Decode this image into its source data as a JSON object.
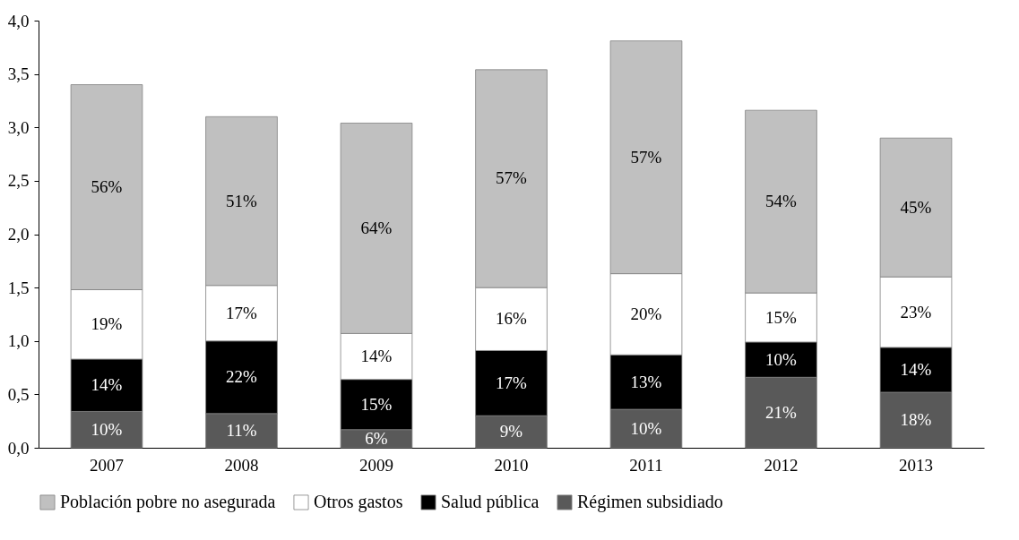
{
  "chart_data": {
    "type": "bar",
    "stacked": true,
    "categories": [
      "2007",
      "2008",
      "2009",
      "2010",
      "2011",
      "2012",
      "2013"
    ],
    "series": [
      {
        "name": "Régimen subsidiado",
        "color": "#595959",
        "values": [
          0.34,
          0.32,
          0.17,
          0.3,
          0.36,
          0.66,
          0.52
        ]
      },
      {
        "name": "Salud pública",
        "color": "#000000",
        "values": [
          0.49,
          0.68,
          0.47,
          0.61,
          0.51,
          0.33,
          0.42
        ]
      },
      {
        "name": "Otros gastos",
        "color": "#ffffff",
        "values": [
          0.65,
          0.52,
          0.43,
          0.59,
          0.76,
          0.46,
          0.66
        ]
      },
      {
        "name": "Población pobre no asegurada",
        "color": "#c0c0c0",
        "values": [
          1.92,
          1.58,
          1.97,
          2.04,
          2.18,
          1.71,
          1.3
        ]
      }
    ],
    "annotations": [
      "10%",
      "14%",
      "19%",
      "56%",
      "11%",
      "22%",
      "17%",
      "51%",
      "6%",
      "15%",
      "14%",
      "64%",
      "9%",
      "17%",
      "16%",
      "57%",
      "10%",
      "13%",
      "20%",
      "57%",
      "21%",
      "10%",
      "15%",
      "54%",
      "18%",
      "14%",
      "23%",
      "45%"
    ],
    "ylim": [
      0,
      4
    ],
    "yticks": [
      {
        "value": 0,
        "label": "0,0"
      },
      {
        "value": 0.5,
        "label": "0,5"
      },
      {
        "value": 1,
        "label": "1,0"
      },
      {
        "value": 1.5,
        "label": "1,5"
      },
      {
        "value": 2,
        "label": "2,0"
      },
      {
        "value": 2.5,
        "label": "2,5"
      },
      {
        "value": 3,
        "label": "3,0"
      },
      {
        "value": 3.5,
        "label": "3,5"
      },
      {
        "value": 4,
        "label": "4,0"
      }
    ],
    "grid": false,
    "legend": "bottom"
  }
}
